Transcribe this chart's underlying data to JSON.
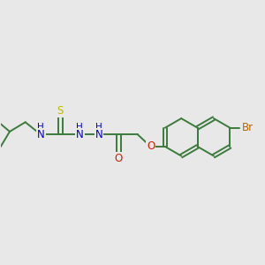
{
  "bg_color": "#e8e8e8",
  "bond_color": "#3d7a3d",
  "bond_width": 1.4,
  "atom_colors": {
    "N": "#0000cc",
    "O": "#cc2200",
    "S": "#bbbb00",
    "Br": "#bb6600",
    "H": "#5555aa"
  },
  "font_size_atom": 8.5,
  "font_size_h": 7.5,
  "font_size_br": 8.5,
  "dbo": 0.055
}
